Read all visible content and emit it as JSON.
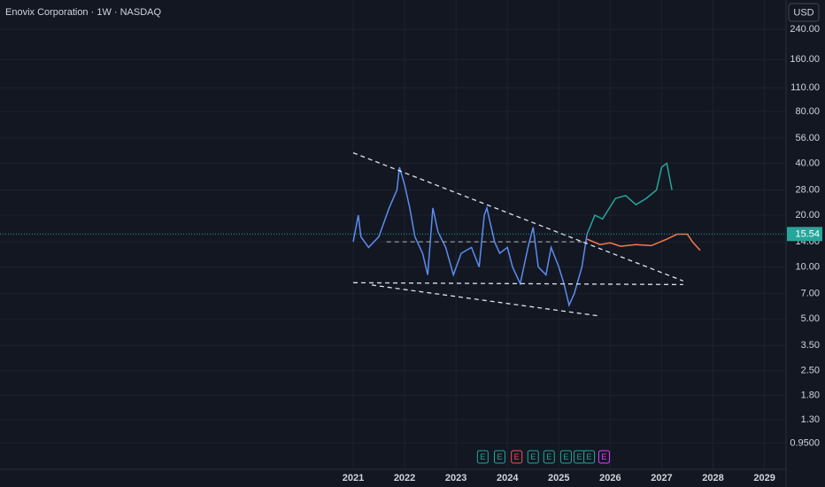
{
  "chart_data": {
    "type": "line",
    "title": "Enovix Corporation · 1W · NASDAQ",
    "currency": "USD",
    "log_scale": true,
    "grid": true,
    "xlim": [
      2014.13,
      2029.42
    ],
    "xticks": [
      2021,
      2022,
      2023,
      2024,
      2025,
      2026,
      2027,
      2028,
      2029
    ],
    "ylim": [
      0.669,
      355
    ],
    "yticks": [
      {
        "value": 240,
        "label": "240.00"
      },
      {
        "value": 160,
        "label": "160.00"
      },
      {
        "value": 110,
        "label": "110.00"
      },
      {
        "value": 80,
        "label": "80.00"
      },
      {
        "value": 56,
        "label": "56.00"
      },
      {
        "value": 40,
        "label": "40.00"
      },
      {
        "value": 28,
        "label": "28.00"
      },
      {
        "value": 20,
        "label": "20.00"
      },
      {
        "value": 14,
        "label": "14.00"
      },
      {
        "value": 10,
        "label": "10.00"
      },
      {
        "value": 7,
        "label": "7.00"
      },
      {
        "value": 5,
        "label": "5.00"
      },
      {
        "value": 3.5,
        "label": "3.50"
      },
      {
        "value": 2.5,
        "label": "2.50"
      },
      {
        "value": 1.8,
        "label": "1.80"
      },
      {
        "value": 1.3,
        "label": "1.30"
      },
      {
        "value": 0.95,
        "label": "0.9500"
      }
    ],
    "last_price": 15.54,
    "last_price_color": "#26a69a",
    "series": [
      {
        "color": "#5b8def",
        "dashed": false,
        "x": [
          2021.0,
          2021.1,
          2021.15,
          2021.3,
          2021.5,
          2021.7,
          2021.85,
          2021.9,
          2022.0,
          2022.1,
          2022.2,
          2022.35,
          2022.45,
          2022.55,
          2022.65,
          2022.8,
          2022.95,
          2023.1,
          2023.3,
          2023.45,
          2023.55,
          2023.6,
          2023.75,
          2023.85,
          2024.0,
          2024.1,
          2024.25,
          2024.4,
          2024.5,
          2024.6,
          2024.75,
          2024.85,
          2025.0,
          2025.1,
          2025.2,
          2025.3,
          2025.45,
          2025.55
        ],
        "values": [
          14,
          20,
          15,
          13,
          15,
          22,
          28,
          38,
          30,
          22,
          15,
          12,
          9,
          22,
          16,
          13,
          9,
          12,
          13,
          10,
          20,
          22,
          14,
          12,
          13,
          10,
          8,
          13,
          17,
          10,
          9,
          13,
          10,
          8,
          6,
          7,
          10,
          15.54
        ]
      },
      {
        "color": "#26a69a",
        "dashed": false,
        "x": [
          2025.55,
          2025.7,
          2025.85,
          2026.1,
          2026.3,
          2026.5,
          2026.7,
          2026.9,
          2027.0,
          2027.1,
          2027.2
        ],
        "values": [
          15.5,
          20,
          19,
          25,
          26,
          23,
          25,
          28,
          38,
          40,
          28
        ]
      },
      {
        "color": "#f7784a",
        "dashed": false,
        "x": [
          2025.55,
          2025.8,
          2026.0,
          2026.2,
          2026.5,
          2026.8,
          2027.1,
          2027.3,
          2027.5,
          2027.6,
          2027.75
        ],
        "values": [
          14.5,
          13.5,
          13.8,
          13.2,
          13.5,
          13.3,
          14.5,
          15.5,
          15.5,
          14,
          12.5
        ]
      },
      {
        "color": "#e0e3eb",
        "dashed": true,
        "x": [
          2021.0,
          2027.42
        ],
        "values": [
          46,
          8.3
        ]
      },
      {
        "color": "#e0e3eb",
        "dashed": true,
        "x": [
          2021.0,
          2027.42
        ],
        "values": [
          8.1,
          7.9
        ]
      },
      {
        "color": "#e0e3eb",
        "dashed": true,
        "x": [
          2021.36,
          2025.78
        ],
        "values": [
          7.86,
          5.2
        ]
      },
      {
        "color": "#9598a1",
        "dashed": true,
        "x": [
          2021.65,
          2025.55
        ],
        "values": [
          14,
          14
        ]
      }
    ],
    "earnings": [
      {
        "x": 2023.52,
        "label": "E",
        "color": "#26a69a"
      },
      {
        "x": 2023.85,
        "label": "E",
        "color": "#26a69a"
      },
      {
        "x": 2024.18,
        "label": "E",
        "color": "#ef5350"
      },
      {
        "x": 2024.5,
        "label": "E",
        "color": "#26a69a"
      },
      {
        "x": 2024.81,
        "label": "E",
        "color": "#26a69a"
      },
      {
        "x": 2025.14,
        "label": "E",
        "color": "#26a69a"
      },
      {
        "x": 2025.4,
        "label": "E",
        "color": "#26a69a"
      },
      {
        "x": 2025.59,
        "label": "E",
        "color": "#26a69a"
      },
      {
        "x": 2025.88,
        "label": "E",
        "color": "#e040fb"
      }
    ]
  }
}
